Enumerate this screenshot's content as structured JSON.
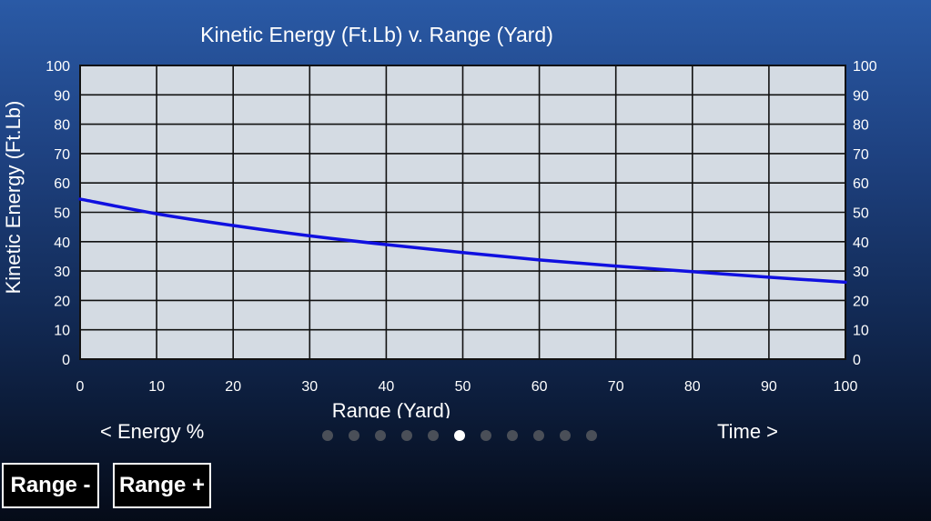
{
  "chart_data": {
    "type": "line",
    "title": "Kinetic Energy (Ft.Lb) v. Range (Yard)",
    "xlabel": "Range (Yard)",
    "ylabel": "Kinetic Energy (Ft.Lb)",
    "xlim": [
      0,
      100
    ],
    "ylim": [
      0,
      100
    ],
    "xticks": [
      "0",
      "10",
      "20",
      "30",
      "40",
      "50",
      "60",
      "70",
      "80",
      "90",
      "100"
    ],
    "yticks": [
      "0",
      "10",
      "20",
      "30",
      "40",
      "50",
      "60",
      "70",
      "80",
      "90",
      "100"
    ],
    "grid": true,
    "legend": "none",
    "line_color": "#1010e0",
    "plot_background": "#d4dbe3",
    "series": [
      {
        "x": [
          0,
          10,
          20,
          30,
          40,
          50,
          60,
          70,
          80,
          90,
          100
        ],
        "values": [
          54.5,
          49.5,
          45.5,
          42,
          39,
          36.3,
          33.8,
          31.7,
          29.8,
          27.9,
          26.2
        ]
      }
    ]
  },
  "nav": {
    "prev_label": "< Energy %",
    "next_label": "Time >",
    "page_count": 11,
    "active_page": 5
  },
  "buttons": {
    "range_minus": "Range -",
    "range_plus": "Range +"
  }
}
